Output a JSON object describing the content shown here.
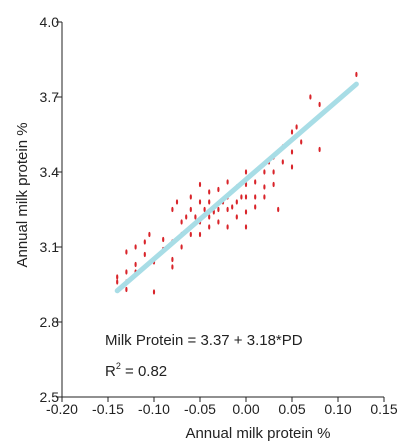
{
  "chart_data": {
    "type": "scatter",
    "xlabel": "Annual milk protein %",
    "ylabel": "Annual milk protein %",
    "xlim": [
      -0.2,
      0.15
    ],
    "ylim": [
      2.5,
      4.0
    ],
    "xticks": [
      "-0.20",
      "-0.15",
      "-0.10",
      "-0.05",
      "0.00",
      "0.05",
      "0.10",
      "0.15"
    ],
    "yticks": [
      "2.5",
      "2.8",
      "3.1",
      "3.4",
      "3.7",
      "4.0"
    ],
    "grid": false,
    "annotations": {
      "equation": "Milk Protein = 3.37 + 3.18*PD",
      "r2_prefix": "R",
      "r2_sup": "2",
      "r2_value": " = 0.82"
    },
    "regression": {
      "intercept": 3.37,
      "slope": 3.18,
      "x_range": [
        -0.14,
        0.12
      ],
      "color": "#a8dde6"
    },
    "point_color": "#d9242a",
    "points": [
      [
        -0.14,
        2.98
      ],
      [
        -0.14,
        2.96
      ],
      [
        -0.13,
        3.0
      ],
      [
        -0.13,
        2.96
      ],
      [
        -0.13,
        2.93
      ],
      [
        -0.13,
        3.08
      ],
      [
        -0.12,
        3.1
      ],
      [
        -0.12,
        3.03
      ],
      [
        -0.12,
        3.0
      ],
      [
        -0.11,
        3.12
      ],
      [
        -0.11,
        3.07
      ],
      [
        -0.105,
        3.15
      ],
      [
        -0.1,
        2.92
      ],
      [
        -0.1,
        3.04
      ],
      [
        -0.09,
        3.09
      ],
      [
        -0.09,
        3.13
      ],
      [
        -0.08,
        3.12
      ],
      [
        -0.08,
        3.05
      ],
      [
        -0.08,
        3.02
      ],
      [
        -0.08,
        3.25
      ],
      [
        -0.075,
        3.28
      ],
      [
        -0.07,
        3.2
      ],
      [
        -0.07,
        3.15
      ],
      [
        -0.07,
        3.1
      ],
      [
        -0.065,
        3.22
      ],
      [
        -0.06,
        3.3
      ],
      [
        -0.06,
        3.25
      ],
      [
        -0.06,
        3.18
      ],
      [
        -0.06,
        3.15
      ],
      [
        -0.055,
        3.22
      ],
      [
        -0.05,
        3.35
      ],
      [
        -0.05,
        3.28
      ],
      [
        -0.05,
        3.2
      ],
      [
        -0.05,
        3.15
      ],
      [
        -0.045,
        3.25
      ],
      [
        -0.04,
        3.32
      ],
      [
        -0.04,
        3.28
      ],
      [
        -0.04,
        3.22
      ],
      [
        -0.04,
        3.18
      ],
      [
        -0.035,
        3.24
      ],
      [
        -0.03,
        3.33
      ],
      [
        -0.03,
        3.25
      ],
      [
        -0.03,
        3.2
      ],
      [
        -0.025,
        3.28
      ],
      [
        -0.02,
        3.36
      ],
      [
        -0.02,
        3.3
      ],
      [
        -0.02,
        3.25
      ],
      [
        -0.02,
        3.18
      ],
      [
        -0.015,
        3.26
      ],
      [
        -0.01,
        3.34
      ],
      [
        -0.01,
        3.28
      ],
      [
        -0.01,
        3.22
      ],
      [
        -0.005,
        3.3
      ],
      [
        0.0,
        3.4
      ],
      [
        0.0,
        3.35
      ],
      [
        0.0,
        3.3
      ],
      [
        0.0,
        3.24
      ],
      [
        0.0,
        3.18
      ],
      [
        0.01,
        3.36
      ],
      [
        0.01,
        3.3
      ],
      [
        0.01,
        3.26
      ],
      [
        0.02,
        3.4
      ],
      [
        0.02,
        3.34
      ],
      [
        0.02,
        3.3
      ],
      [
        0.025,
        3.44
      ],
      [
        0.03,
        3.46
      ],
      [
        0.03,
        3.4
      ],
      [
        0.03,
        3.35
      ],
      [
        0.035,
        3.25
      ],
      [
        0.04,
        3.5
      ],
      [
        0.04,
        3.44
      ],
      [
        0.05,
        3.56
      ],
      [
        0.05,
        3.48
      ],
      [
        0.05,
        3.42
      ],
      [
        0.055,
        3.58
      ],
      [
        0.06,
        3.52
      ],
      [
        0.07,
        3.7
      ],
      [
        0.08,
        3.67
      ],
      [
        0.08,
        3.49
      ],
      [
        0.12,
        3.79
      ]
    ]
  }
}
